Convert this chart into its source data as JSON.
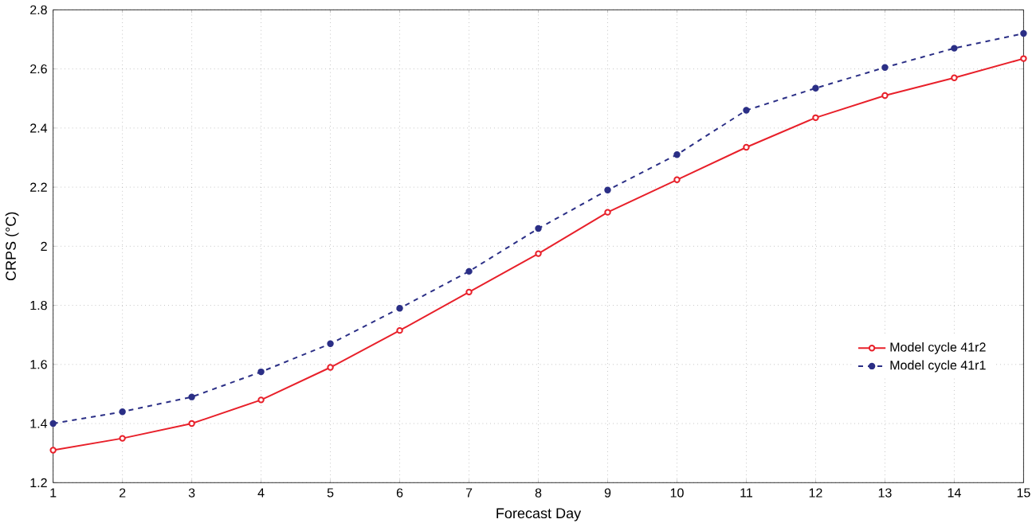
{
  "chart_data": {
    "type": "line",
    "xlabel": "Forecast Day",
    "ylabel": "CRPS (°C)",
    "x": [
      1,
      2,
      3,
      4,
      5,
      6,
      7,
      8,
      9,
      10,
      11,
      12,
      13,
      14,
      15
    ],
    "series": [
      {
        "name": "Model cycle 41r2",
        "color": "#e8202a",
        "marker": "circle",
        "line_style": "solid",
        "values": [
          1.31,
          1.35,
          1.4,
          1.48,
          1.59,
          1.715,
          1.845,
          1.975,
          2.115,
          2.225,
          2.335,
          2.435,
          2.51,
          2.57,
          2.635
        ]
      },
      {
        "name": "Model cycle 41r1",
        "color": "#2b2f86",
        "marker": "circle",
        "line_style": "dashed",
        "values": [
          1.4,
          1.44,
          1.49,
          1.575,
          1.67,
          1.79,
          1.915,
          2.06,
          2.19,
          2.31,
          2.46,
          2.535,
          2.605,
          2.67,
          2.72
        ]
      }
    ],
    "xlim": [
      1,
      15
    ],
    "xticks": [
      1,
      2,
      3,
      4,
      5,
      6,
      7,
      8,
      9,
      10,
      11,
      12,
      13,
      14,
      15
    ],
    "ylim": [
      1.2,
      2.8
    ],
    "yticks": [
      1.2,
      1.4,
      1.6,
      1.8,
      2,
      2.2,
      2.4,
      2.6,
      2.8
    ],
    "grid": true,
    "legend": "right"
  }
}
